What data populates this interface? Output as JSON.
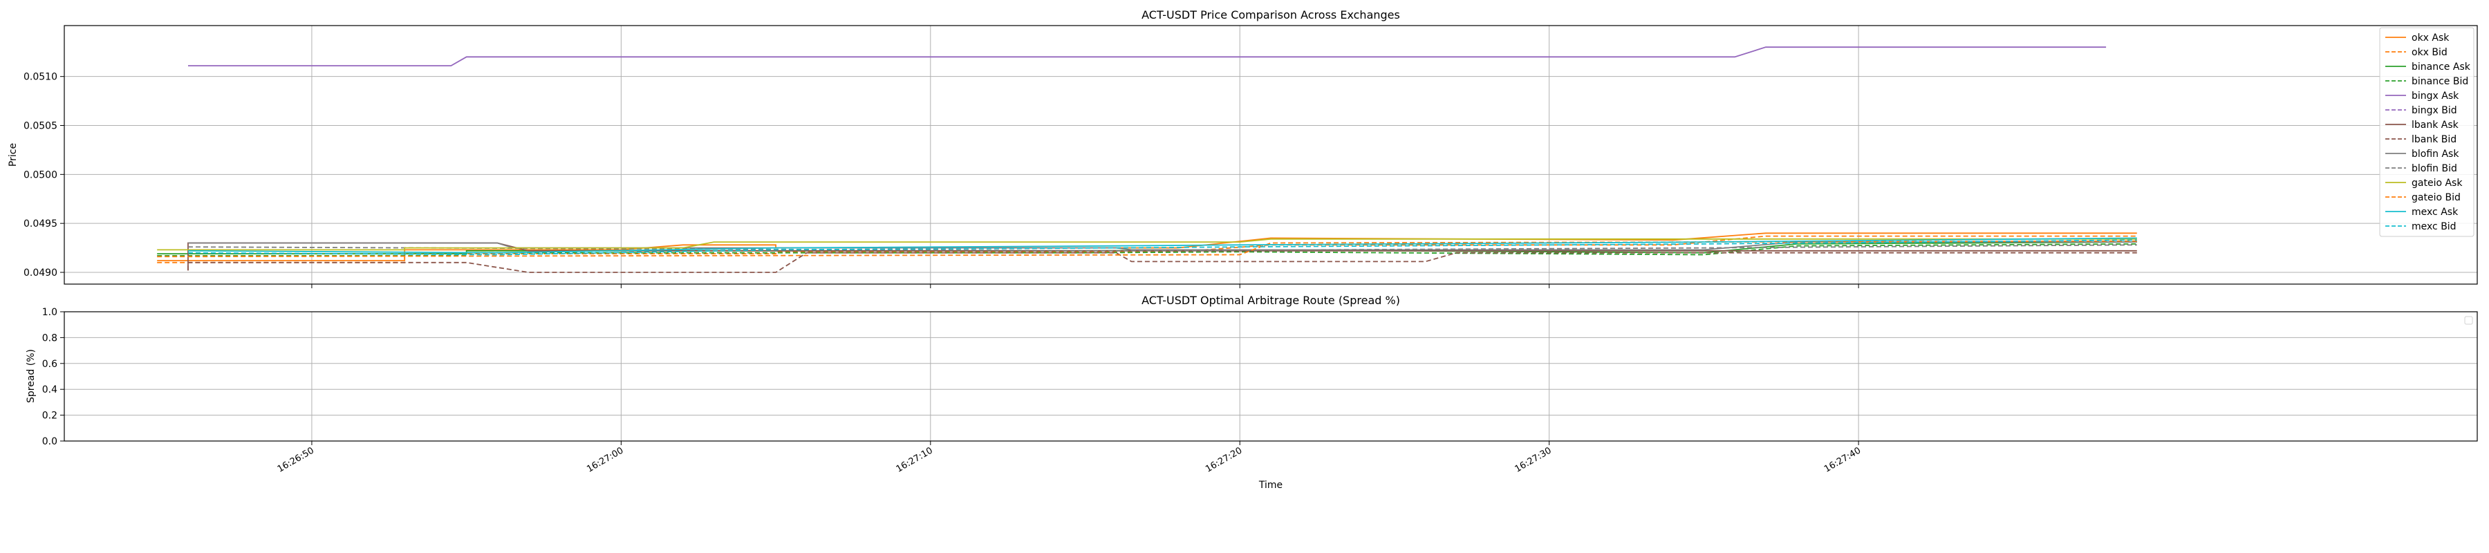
{
  "chart_data": [
    {
      "type": "line",
      "title": "ACT-USDT Price Comparison Across Exchanges",
      "xlabel": "",
      "ylabel": "Price",
      "xlim": [
        "16:26:42",
        "16:28:00"
      ],
      "ylim": [
        0.04888,
        0.05152
      ],
      "yticks": [
        0.049,
        0.0495,
        0.05,
        0.0505,
        0.051
      ],
      "ytick_labels": [
        "0.0490",
        "0.0495",
        "0.0500",
        "0.0505",
        "0.0510"
      ],
      "xticks": [
        "16:26:50",
        "16:27:00",
        "16:27:10",
        "16:27:20",
        "16:27:30",
        "16:27:40"
      ],
      "grid": true,
      "legend_position": "upper-right",
      "series": [
        {
          "name": "okx Ask",
          "color": "#ff7f0e",
          "style": "solid",
          "points": [
            [
              "16:26:45",
              0.04912
            ],
            [
              "16:26:53",
              0.04912
            ],
            [
              "16:26:53",
              0.04923
            ],
            [
              "16:27:00",
              0.04923
            ],
            [
              "16:27:02",
              0.04928
            ],
            [
              "16:27:05",
              0.04928
            ],
            [
              "16:27:05",
              0.04925
            ],
            [
              "16:27:18",
              0.04925
            ],
            [
              "16:27:21",
              0.04935
            ],
            [
              "16:27:34",
              0.04933
            ],
            [
              "16:27:37",
              0.0494
            ],
            [
              "16:27:49",
              0.0494
            ]
          ]
        },
        {
          "name": "okx Bid",
          "color": "#ff7f0e",
          "style": "dashed",
          "points": [
            [
              "16:26:45",
              0.0491
            ],
            [
              "16:26:53",
              0.0491
            ],
            [
              "16:26:53",
              0.04919
            ],
            [
              "16:27:05",
              0.04919
            ],
            [
              "16:27:05",
              0.04921
            ],
            [
              "16:27:18",
              0.04921
            ],
            [
              "16:27:21",
              0.04928
            ],
            [
              "16:27:34",
              0.04928
            ],
            [
              "16:27:37",
              0.04937
            ],
            [
              "16:27:49",
              0.04937
            ]
          ]
        },
        {
          "name": "binance Ask",
          "color": "#2ca02c",
          "style": "solid",
          "points": [
            [
              "16:26:45",
              0.04919
            ],
            [
              "16:26:55",
              0.04919
            ],
            [
              "16:26:55",
              0.04922
            ],
            [
              "16:27:15",
              0.04922
            ],
            [
              "16:27:20",
              0.04923
            ],
            [
              "16:27:35",
              0.0492
            ],
            [
              "16:27:38",
              0.04929
            ],
            [
              "16:27:49",
              0.04931
            ]
          ]
        },
        {
          "name": "binance Bid",
          "color": "#2ca02c",
          "style": "dashed",
          "points": [
            [
              "16:26:45",
              0.04917
            ],
            [
              "16:26:55",
              0.04917
            ],
            [
              "16:26:55",
              0.0492
            ],
            [
              "16:27:15",
              0.0492
            ],
            [
              "16:27:20",
              0.04921
            ],
            [
              "16:27:35",
              0.04918
            ],
            [
              "16:27:38",
              0.04927
            ],
            [
              "16:27:49",
              0.04929
            ]
          ]
        },
        {
          "name": "bingx Ask",
          "color": "#9467bd",
          "style": "solid",
          "points": [
            [
              "16:26:46",
              0.05111
            ],
            [
              "16:26:54.5",
              0.05111
            ],
            [
              "16:26:55",
              0.0512
            ],
            [
              "16:27:36",
              0.0512
            ],
            [
              "16:27:37",
              0.0513
            ],
            [
              "16:27:48",
              0.0513
            ]
          ]
        },
        {
          "name": "bingx Bid",
          "color": "#9467bd",
          "style": "dashed",
          "points": []
        },
        {
          "name": "lbank Ask",
          "color": "#8c564b",
          "style": "solid",
          "points": [
            [
              "16:26:46",
              0.04902
            ],
            [
              "16:26:46",
              0.0493
            ],
            [
              "16:26:56",
              0.0493
            ],
            [
              "16:26:57",
              0.04922
            ],
            [
              "16:27:15",
              0.04922
            ],
            [
              "16:27:20",
              0.04922
            ],
            [
              "16:27:49",
              0.04922
            ]
          ]
        },
        {
          "name": "lbank Bid",
          "color": "#8c564b",
          "style": "dashed",
          "points": [
            [
              "16:26:46",
              0.04902
            ],
            [
              "16:26:46",
              0.0491
            ],
            [
              "16:26:55",
              0.0491
            ],
            [
              "16:26:57",
              0.049
            ],
            [
              "16:27:05",
              0.049
            ],
            [
              "16:27:06",
              0.0492
            ],
            [
              "16:27:16",
              0.0492
            ],
            [
              "16:27:16.5",
              0.04911
            ],
            [
              "16:27:26",
              0.04911
            ],
            [
              "16:27:27",
              0.0492
            ],
            [
              "16:27:49",
              0.0492
            ]
          ]
        },
        {
          "name": "blofin Ask",
          "color": "#7f7f7f",
          "style": "solid",
          "points": [
            [
              "16:26:46",
              0.0493
            ],
            [
              "16:26:56",
              0.0493
            ],
            [
              "16:26:56.5",
              0.04925
            ],
            [
              "16:27:16",
              0.04925
            ],
            [
              "16:27:16.5",
              0.04923
            ],
            [
              "16:27:35",
              0.04923
            ],
            [
              "16:27:38",
              0.04931
            ],
            [
              "16:27:49",
              0.04931
            ]
          ]
        },
        {
          "name": "blofin Bid",
          "color": "#7f7f7f",
          "style": "dashed",
          "points": [
            [
              "16:26:46",
              0.04926
            ],
            [
              "16:27:16",
              0.04922
            ],
            [
              "16:27:35",
              0.04925
            ],
            [
              "16:27:49",
              0.04928
            ]
          ]
        },
        {
          "name": "gateio Ask",
          "color": "#bcbd22",
          "style": "solid",
          "points": [
            [
              "16:26:45",
              0.04923
            ],
            [
              "16:26:53",
              0.04923
            ],
            [
              "16:26:53",
              0.04925
            ],
            [
              "16:27:02",
              0.04925
            ],
            [
              "16:27:03",
              0.04931
            ],
            [
              "16:27:20",
              0.04931
            ],
            [
              "16:27:21",
              0.04934
            ],
            [
              "16:27:49",
              0.04934
            ]
          ]
        },
        {
          "name": "gateio Bid",
          "color": "#ff7f0e",
          "style": "dashed",
          "points": [
            [
              "16:26:45",
              0.04916
            ],
            [
              "16:27:20",
              0.04918
            ],
            [
              "16:27:21",
              0.0493
            ],
            [
              "16:27:49",
              0.04932
            ]
          ]
        },
        {
          "name": "mexc Ask",
          "color": "#17becf",
          "style": "solid",
          "points": [
            [
              "16:26:46",
              0.04922
            ],
            [
              "16:26:56",
              0.0492
            ],
            [
              "16:27:05",
              0.04925
            ],
            [
              "16:27:16",
              0.04927
            ],
            [
              "16:27:20",
              0.04928
            ],
            [
              "16:27:35",
              0.04931
            ],
            [
              "16:27:49",
              0.04935
            ]
          ]
        },
        {
          "name": "mexc Bid",
          "color": "#17becf",
          "style": "dashed",
          "points": [
            [
              "16:26:46",
              0.0492
            ],
            [
              "16:26:56",
              0.04918
            ],
            [
              "16:27:05",
              0.04923
            ],
            [
              "16:27:16",
              0.04925
            ],
            [
              "16:27:20",
              0.04926
            ],
            [
              "16:27:35",
              0.04929
            ],
            [
              "16:27:49",
              0.04933
            ]
          ]
        }
      ]
    },
    {
      "type": "line",
      "title": "ACT-USDT Optimal Arbitrage Route (Spread %)",
      "xlabel": "Time",
      "ylabel": "Spread (%)",
      "xlim": [
        "16:26:42",
        "16:28:00"
      ],
      "ylim": [
        0.0,
        1.0
      ],
      "yticks": [
        0.0,
        0.2,
        0.4,
        0.6,
        0.8,
        1.0
      ],
      "ytick_labels": [
        "0.0",
        "0.2",
        "0.4",
        "0.6",
        "0.8",
        "1.0"
      ],
      "xticks": [
        "16:26:50",
        "16:27:00",
        "16:27:10",
        "16:27:20",
        "16:27:30",
        "16:27:40"
      ],
      "grid": true,
      "legend_position": "upper-right",
      "series": []
    }
  ]
}
